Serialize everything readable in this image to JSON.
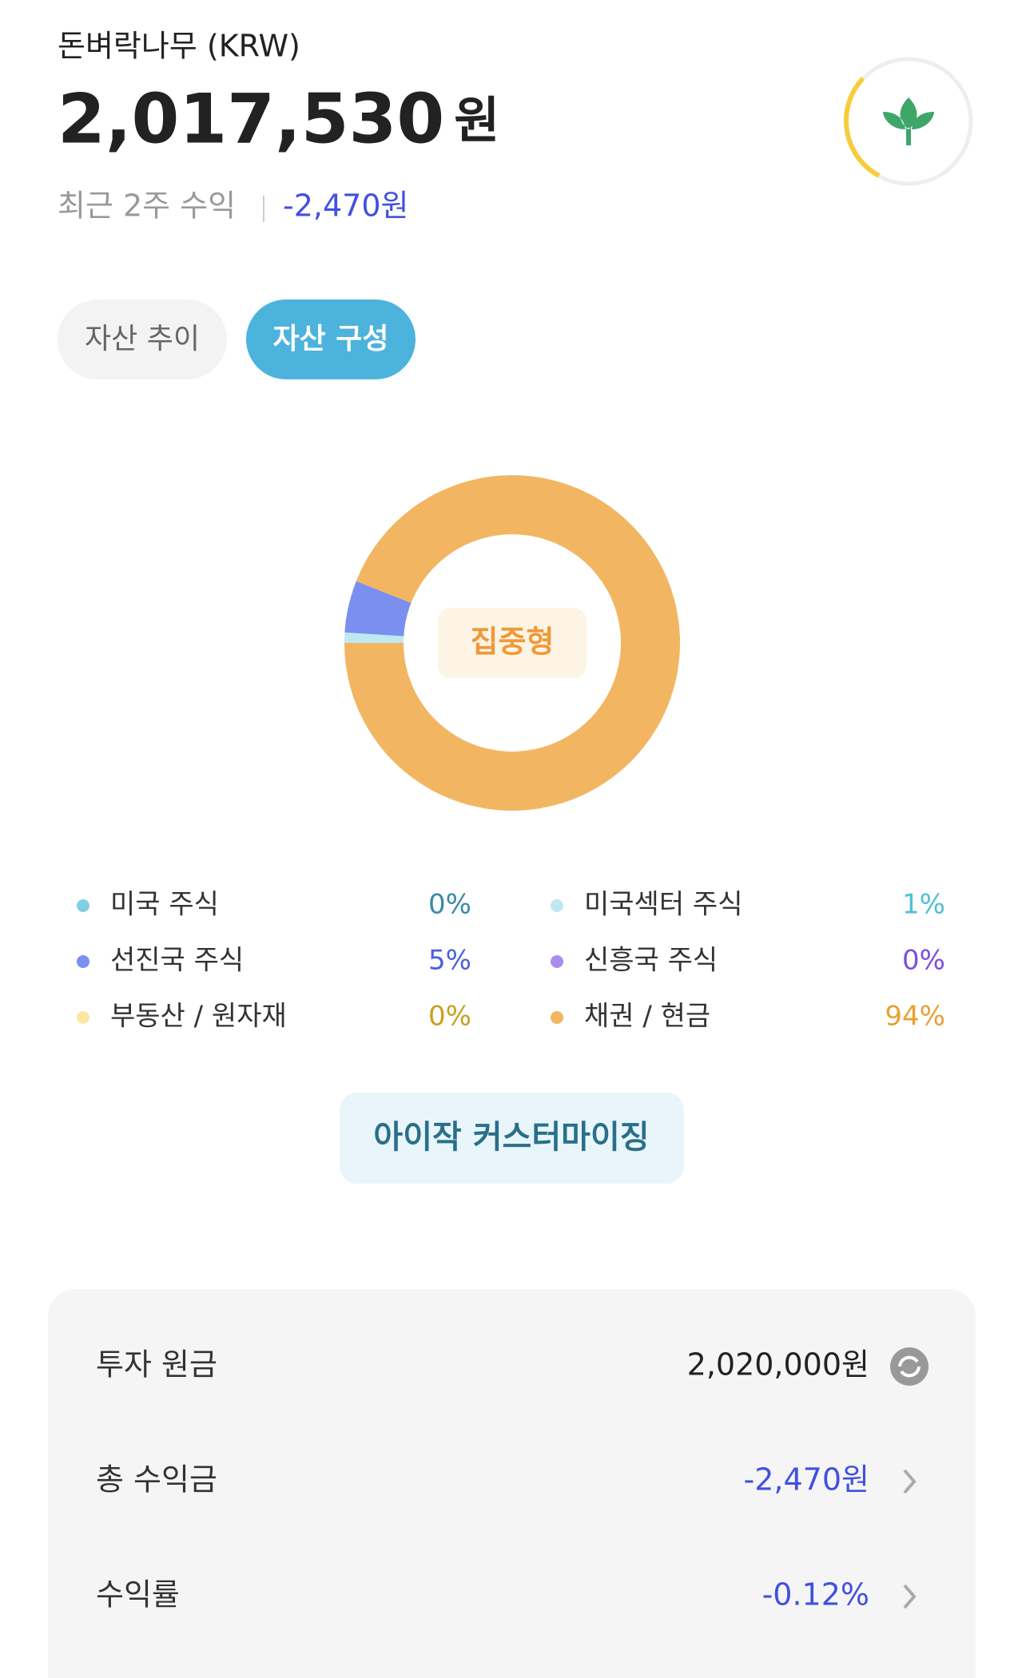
{
  "header": {
    "account": "돈벼락나무 (KRW)",
    "balance": "2,017,530",
    "balance_unit": "원",
    "recent_label": "최근 2주 수익",
    "recent_value": "-2,470원"
  },
  "tabs": [
    "자산 추이",
    "자산 구성"
  ],
  "chart_data": {
    "type": "donut",
    "center_label": "집중형",
    "items": [
      {
        "name": "미국 주식",
        "value": 0,
        "value_label": "0%",
        "color": "#7fd0e3",
        "text_color": "#3a8aa8"
      },
      {
        "name": "미국섹터 주식",
        "value": 1,
        "value_label": "1%",
        "color": "#bfe8f2",
        "text_color": "#4fc0d6"
      },
      {
        "name": "선진국 주식",
        "value": 5,
        "value_label": "5%",
        "color": "#7a8ff0",
        "text_color": "#4a5fe0"
      },
      {
        "name": "신흥국 주식",
        "value": 0,
        "value_label": "0%",
        "color": "#a88cf0",
        "text_color": "#7b4fe0"
      },
      {
        "name": "부동산 / 원자재",
        "value": 0,
        "value_label": "0%",
        "color": "#fbe6a6",
        "text_color": "#c9a020"
      },
      {
        "name": "채권 / 현금",
        "value": 94,
        "value_label": "94%",
        "color": "#f2b662",
        "text_color": "#e8a030"
      }
    ]
  },
  "button": "아이작 커스터마이징",
  "summary": [
    {
      "label": "투자 원금",
      "value": "2,020,000원"
    },
    {
      "label": "총 수익금",
      "value": "-2,470원"
    },
    {
      "label": "수익률",
      "value": "-0.12%"
    }
  ]
}
